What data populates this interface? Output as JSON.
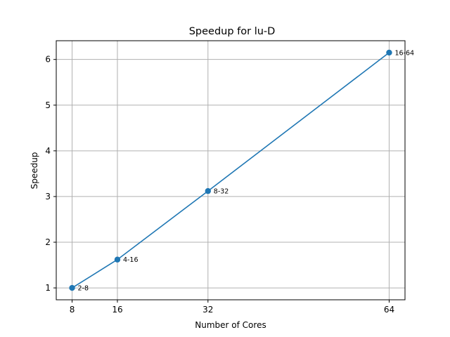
{
  "chart_data": {
    "type": "line",
    "title": "Speedup for lu-D",
    "xlabel": "Number of Cores",
    "ylabel": "Speedup",
    "x": [
      8,
      16,
      32,
      64
    ],
    "xlim": [
      5.2,
      66.8
    ],
    "ylim": [
      0.74,
      6.41
    ],
    "xticks": [
      8,
      16,
      32,
      64
    ],
    "yticks": [
      1,
      2,
      3,
      4,
      5,
      6
    ],
    "grid": true,
    "color": "#1f77b4",
    "series": [
      {
        "values": [
          1.0,
          1.62,
          3.12,
          6.15
        ],
        "point_labels": [
          "2-8",
          "4-16",
          "8-32",
          "16-64"
        ]
      }
    ]
  }
}
